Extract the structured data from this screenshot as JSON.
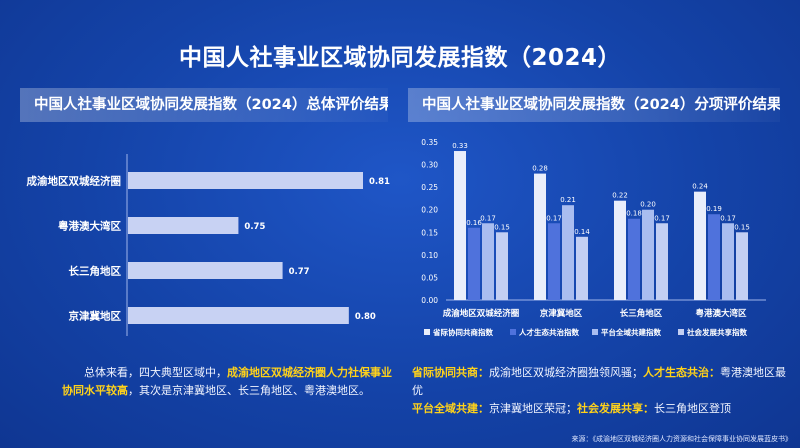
{
  "title": "中国人社事业区域协同发展指数（2024）",
  "left_header": "中国人社事业区域协同发展指数（2024）总体评价结果",
  "right_header": "中国人社事业区域协同发展指数（2024）分项评价结果",
  "chart_data": [
    {
      "type": "bar",
      "orientation": "horizontal",
      "title": "中国人社事业区域协同发展指数（2024）总体评价结果",
      "categories": [
        "成渝地区双城经济圈",
        "粤港澳大湾区",
        "长三角地区",
        "京津冀地区"
      ],
      "values": [
        0.81,
        0.75,
        0.77,
        0.8
      ],
      "value_labels": [
        "0.81",
        "0.75",
        "0.77",
        "0.80"
      ],
      "xlim": [
        0.7,
        0.82
      ],
      "bar_color": "#c8d2f3"
    },
    {
      "type": "bar",
      "title": "中国人社事业区域协同发展指数（2024）分项评价结果",
      "categories": [
        "成渝地区双城经济圈",
        "京津冀地区",
        "长三角地区",
        "粤港澳大湾区"
      ],
      "series": [
        {
          "name": "省际协同共商指数",
          "values": [
            0.33,
            0.28,
            0.22,
            0.24
          ],
          "labels": [
            "0.33",
            "0.28",
            "0.22",
            "0.24"
          ],
          "color": "#e9eefb"
        },
        {
          "name": "人才生态共治指数",
          "values": [
            0.16,
            0.17,
            0.18,
            0.19
          ],
          "labels": [
            "0.16",
            "0.17",
            "0.18",
            "0.19"
          ],
          "color": "#4f72dc"
        },
        {
          "name": "平台全域共建指数",
          "values": [
            0.17,
            0.21,
            0.2,
            0.17
          ],
          "labels": [
            "0.17",
            "0.21",
            "0.20",
            "0.17"
          ],
          "color": "#a9bdf0"
        },
        {
          "name": "社会发展共享指数",
          "values": [
            0.15,
            0.14,
            0.17,
            0.15
          ],
          "labels": [
            "0.15",
            "0.14",
            "0.17",
            "0.15"
          ],
          "color": "#c3cff3"
        }
      ],
      "ylim": [
        0,
        0.35
      ],
      "yticks": [
        "0.00",
        "0.05",
        "0.10",
        "0.15",
        "0.20",
        "0.25",
        "0.30",
        "0.35"
      ],
      "legend": "bottom"
    }
  ],
  "summary": {
    "p1": "总体来看，四大典型区域中，",
    "hl": "成渝地区双城经济圈人力社保事业协同水平较高",
    "p2": "，其次是京津冀地区、长三角地区、粤港澳地区。"
  },
  "notes": {
    "k1": "省际协同共商：",
    "t1": "成渝地区双城经济圈独领风骚；",
    "k2": "人才生态共治：",
    "t2": "粤港澳地区最优",
    "k3": "平台全域共建：",
    "t3": "京津冀地区荣冠；",
    "k4": "社会发展共享：",
    "t4": "长三角地区登顶"
  },
  "source": "来源：《成渝地区双城经济圈人力资源和社会保障事业协同发展蓝皮书》"
}
